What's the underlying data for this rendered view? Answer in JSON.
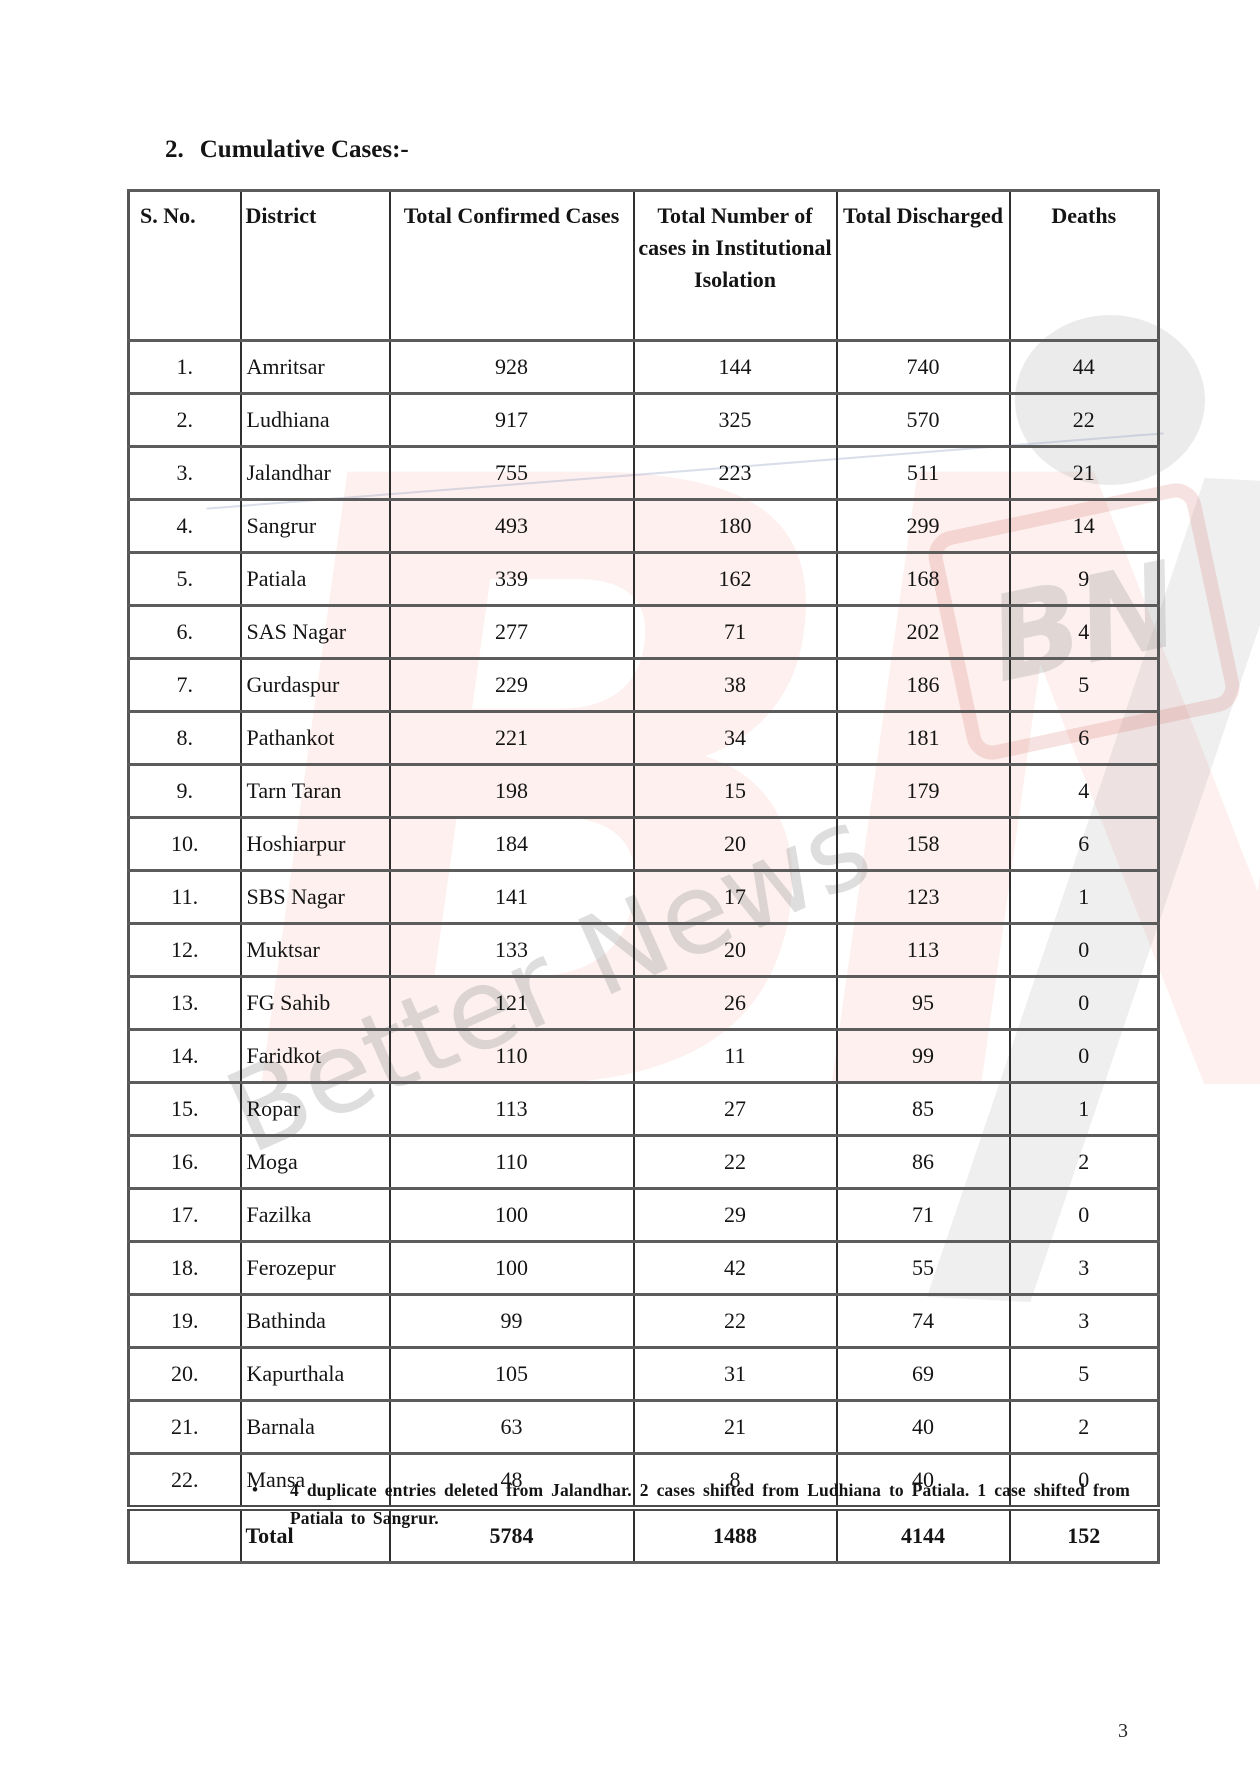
{
  "page": {
    "title_number": "2.",
    "title_text": "Cumulative Cases:-",
    "page_number": "3"
  },
  "note": {
    "bullet": "•",
    "text": "4 duplicate entries deleted from Jalandhar. 2 cases shifted from Ludhiana to Patiala. 1 case shifted from Patiala to Sangrur."
  },
  "watermark": {
    "brand_letters": "BN",
    "badge_letters": "BN",
    "tagline": "Better News",
    "pink": "#e87a6e",
    "gray": "#9a9a9a"
  },
  "table": {
    "headers": [
      "S. No.",
      "District",
      "Total Confirmed Cases",
      "Total Number of cases in Institutional Isolation",
      "Total Discharged",
      "Deaths"
    ],
    "rows": [
      [
        "1.",
        "Amritsar",
        "928",
        "144",
        "740",
        "44"
      ],
      [
        "2.",
        "Ludhiana",
        "917",
        "325",
        "570",
        "22"
      ],
      [
        "3.",
        "Jalandhar",
        "755",
        "223",
        "511",
        "21"
      ],
      [
        "4.",
        "Sangrur",
        "493",
        "180",
        "299",
        "14"
      ],
      [
        "5.",
        "Patiala",
        "339",
        "162",
        "168",
        "9"
      ],
      [
        "6.",
        "SAS Nagar",
        "277",
        "71",
        "202",
        "4"
      ],
      [
        "7.",
        "Gurdaspur",
        "229",
        "38",
        "186",
        "5"
      ],
      [
        "8.",
        "Pathankot",
        "221",
        "34",
        "181",
        "6"
      ],
      [
        "9.",
        "Tarn Taran",
        "198",
        "15",
        "179",
        "4"
      ],
      [
        "10.",
        "Hoshiarpur",
        "184",
        "20",
        "158",
        "6"
      ],
      [
        "11.",
        "SBS Nagar",
        "141",
        "17",
        "123",
        "1"
      ],
      [
        "12.",
        "Muktsar",
        "133",
        "20",
        "113",
        "0"
      ],
      [
        "13.",
        "FG Sahib",
        "121",
        "26",
        "95",
        "0"
      ],
      [
        "14.",
        "Faridkot",
        "110",
        "11",
        "99",
        "0"
      ],
      [
        "15.",
        "Ropar",
        "113",
        "27",
        "85",
        "1"
      ],
      [
        "16.",
        "Moga",
        "110",
        "22",
        "86",
        "2"
      ],
      [
        "17.",
        "Fazilka",
        "100",
        "29",
        "71",
        "0"
      ],
      [
        "18.",
        "Ferozepur",
        "100",
        "42",
        "55",
        "3"
      ],
      [
        "19.",
        "Bathinda",
        "99",
        "22",
        "74",
        "3"
      ],
      [
        "20.",
        "Kapurthala",
        "105",
        "31",
        "69",
        "5"
      ],
      [
        "21.",
        "Barnala",
        "63",
        "21",
        "40",
        "2"
      ],
      [
        "22.",
        "Mansa",
        "48",
        "8",
        "40",
        "0"
      ]
    ],
    "total_row": [
      "",
      "Total",
      "5784",
      "1488",
      "4144",
      "152"
    ]
  }
}
